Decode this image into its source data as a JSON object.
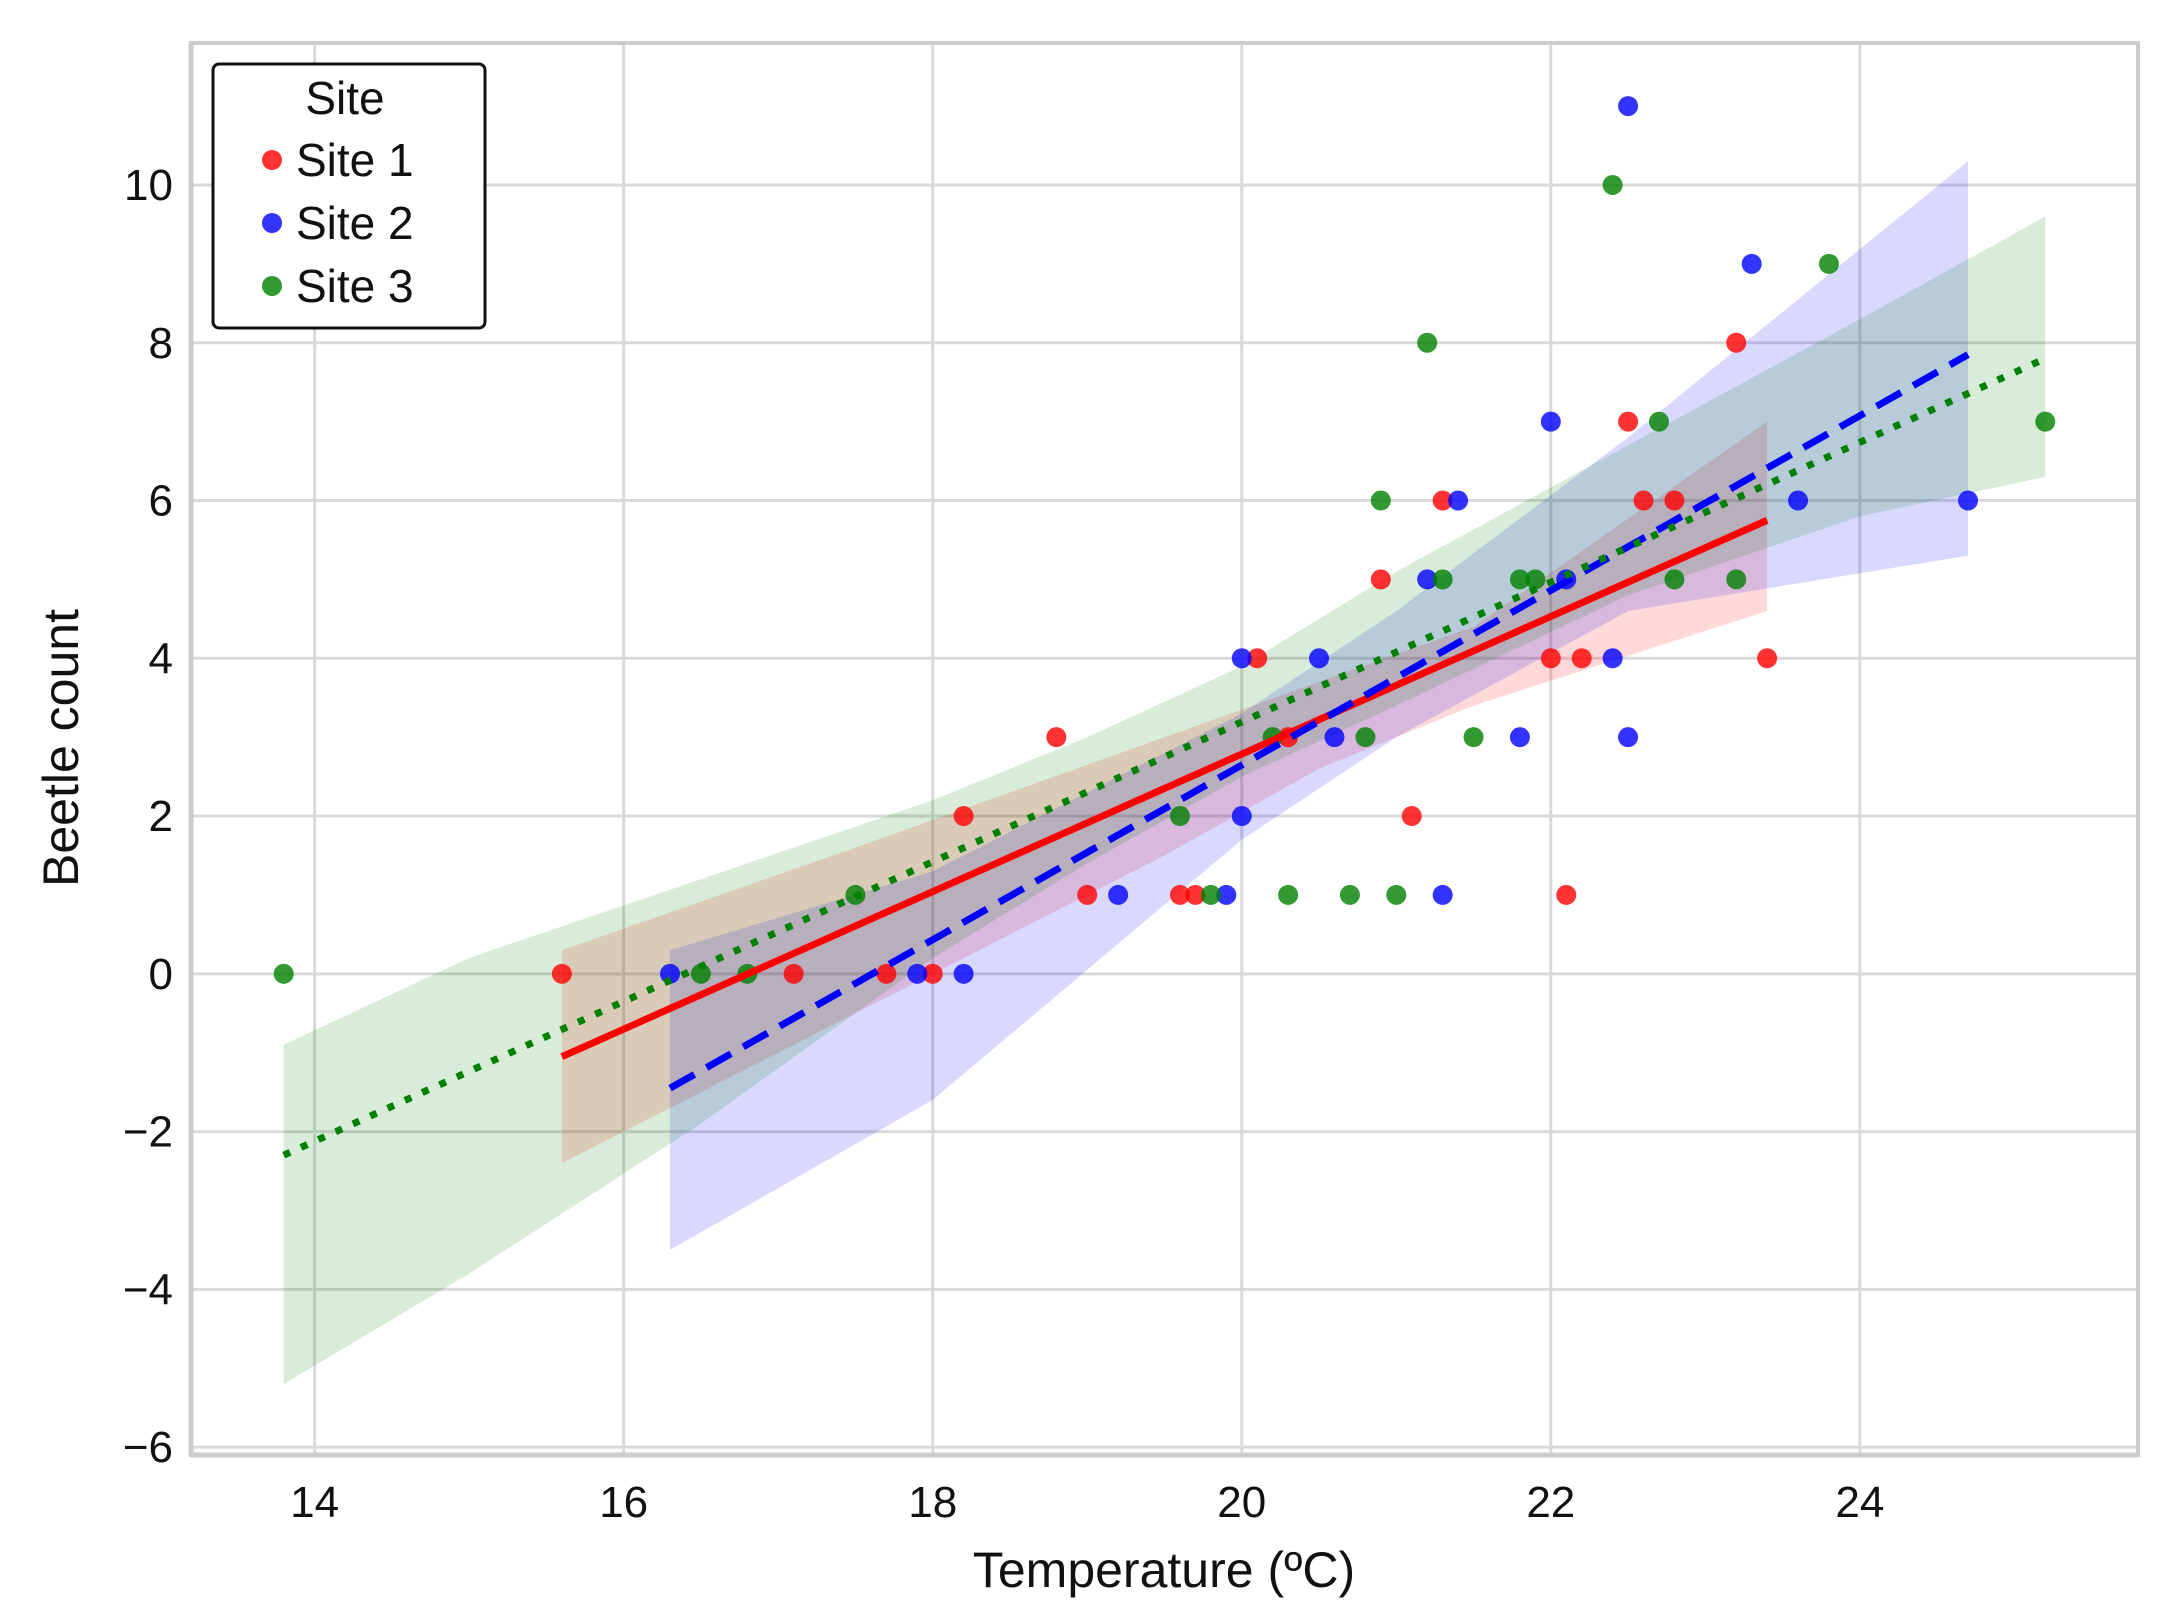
{
  "chart_data": {
    "type": "scatter",
    "title": "",
    "xlabel": "Temperature (ºC)",
    "ylabel": "Beetle count",
    "xlim": [
      13.2,
      25.8
    ],
    "ylim": [
      -6.1,
      11.8
    ],
    "xticks": [
      14,
      16,
      18,
      20,
      22,
      24
    ],
    "yticks": [
      -6,
      -4,
      -2,
      0,
      2,
      4,
      6,
      8,
      10
    ],
    "grid": true,
    "legend": {
      "title": "Site",
      "placement": "top-left"
    },
    "series": [
      {
        "name": "Site 1",
        "color": "#ff0000",
        "line_style": "solid",
        "fit": {
          "x": [
            15.6,
            23.4
          ],
          "y": [
            -1.05,
            5.75
          ]
        },
        "ci": {
          "x": [
            15.6,
            17.5,
            19.5,
            20.5,
            21.5,
            23.4
          ],
          "upper": [
            0.3,
            1.6,
            3.0,
            3.7,
            4.4,
            7.0
          ],
          "lower": [
            -2.4,
            -0.5,
            1.5,
            2.6,
            3.4,
            4.6
          ]
        },
        "points": [
          [
            15.6,
            0
          ],
          [
            17.1,
            0
          ],
          [
            17.7,
            0
          ],
          [
            18.0,
            0
          ],
          [
            18.2,
            2
          ],
          [
            18.8,
            3
          ],
          [
            19.0,
            1
          ],
          [
            19.6,
            1
          ],
          [
            19.7,
            1
          ],
          [
            20.1,
            4
          ],
          [
            20.3,
            3
          ],
          [
            20.9,
            5
          ],
          [
            21.1,
            2
          ],
          [
            21.3,
            6
          ],
          [
            22.0,
            4
          ],
          [
            22.1,
            1
          ],
          [
            22.2,
            4
          ],
          [
            22.5,
            7
          ],
          [
            22.6,
            6
          ],
          [
            22.8,
            6
          ],
          [
            23.2,
            8
          ],
          [
            23.4,
            4
          ]
        ]
      },
      {
        "name": "Site 2",
        "color": "#0000ff",
        "line_style": "dashed",
        "fit": {
          "x": [
            16.3,
            24.7
          ],
          "y": [
            -1.45,
            7.85
          ]
        },
        "ci": {
          "x": [
            16.3,
            18.0,
            20.0,
            21.0,
            22.5,
            24.7
          ],
          "upper": [
            0.3,
            1.3,
            3.3,
            4.6,
            6.8,
            10.3
          ],
          "lower": [
            -3.5,
            -1.6,
            1.7,
            3.0,
            4.6,
            5.3
          ]
        },
        "points": [
          [
            16.3,
            0
          ],
          [
            17.9,
            0
          ],
          [
            18.2,
            0
          ],
          [
            19.2,
            1
          ],
          [
            19.9,
            1
          ],
          [
            20.0,
            2
          ],
          [
            20.0,
            4
          ],
          [
            20.5,
            4
          ],
          [
            20.6,
            3
          ],
          [
            21.2,
            5
          ],
          [
            21.3,
            1
          ],
          [
            21.4,
            6
          ],
          [
            21.8,
            3
          ],
          [
            22.0,
            7
          ],
          [
            22.1,
            5
          ],
          [
            22.4,
            4
          ],
          [
            22.5,
            11
          ],
          [
            22.5,
            3
          ],
          [
            23.3,
            9
          ],
          [
            23.6,
            6
          ],
          [
            24.7,
            6
          ]
        ]
      },
      {
        "name": "Site 3",
        "color": "#008000",
        "line_style": "dotted",
        "fit": {
          "x": [
            13.8,
            25.2
          ],
          "y": [
            -2.3,
            7.8
          ]
        },
        "ci": {
          "x": [
            13.8,
            15.0,
            16.5,
            18.0,
            19.0,
            20.0,
            21.0,
            22.5,
            24.0,
            25.2
          ],
          "upper": [
            -0.9,
            0.2,
            1.2,
            2.2,
            3.0,
            3.9,
            5.1,
            6.7,
            8.3,
            9.6
          ],
          "lower": [
            -5.2,
            -3.8,
            -1.9,
            0.2,
            1.4,
            2.5,
            3.4,
            4.8,
            5.8,
            6.3
          ]
        },
        "points": [
          [
            13.8,
            0
          ],
          [
            16.5,
            0
          ],
          [
            16.8,
            0
          ],
          [
            17.5,
            1
          ],
          [
            19.6,
            2
          ],
          [
            19.8,
            1
          ],
          [
            20.2,
            3
          ],
          [
            20.3,
            1
          ],
          [
            20.7,
            1
          ],
          [
            20.8,
            3
          ],
          [
            20.9,
            6
          ],
          [
            21.0,
            1
          ],
          [
            21.2,
            8
          ],
          [
            21.3,
            5
          ],
          [
            21.5,
            3
          ],
          [
            21.8,
            5
          ],
          [
            21.9,
            5
          ],
          [
            22.4,
            10
          ],
          [
            22.7,
            7
          ],
          [
            22.8,
            5
          ],
          [
            23.2,
            5
          ],
          [
            23.8,
            9
          ],
          [
            25.2,
            7
          ]
        ]
      }
    ]
  }
}
